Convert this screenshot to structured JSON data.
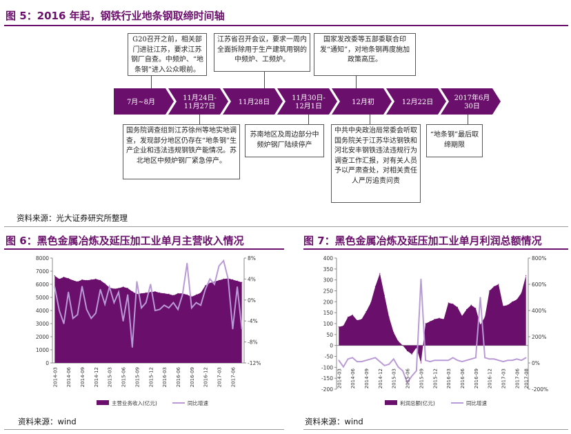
{
  "fig5": {
    "title": "图 5：2016 年起，钢铁行业地条钢取缔时间轴",
    "timeline": [
      "7月~8月",
      "11月24日-\n11月27日",
      "11月28日",
      "11月30日-\n12月1日",
      "12月初",
      "12月22日",
      "2017年6月\n30日"
    ],
    "events_top": [
      "G20召开之前，相关部门进驻江苏，要求江苏钢厂自查。中频炉、“地条钢”进入公众眼前。",
      "江苏省召开会议，要求一周内全面拆除用于生产建筑用钢的中频炉、工频炉。",
      "国家发改委等五部委联合印发“通知”，对地条钢再度施加政策高压。"
    ],
    "events_bottom": [
      "国务院调查组到江苏徐州等地实地调查，发现部分地区仍存在“地条钢”生产企业和违法违规钢铁产能情况。苏北地区中频炉钢厂紧急停产。",
      "苏南地区及周边部分中频炉钢厂陆续停产",
      "中共中央政治局常委会听取国务院关于江苏华达钢铁和河北安丰钢铁违法违规行为调查工作汇报，对有关人员予以严肃查处，对相关责任人严厉追责问责",
      "“地条钢”最后取缔期限"
    ],
    "source": "资料来源：光大证券研究所整理"
  },
  "fig6": {
    "title": "图 6：黑色金属冶炼及延压加工业单月主营收入情况",
    "source": "资料来源：wind"
  },
  "fig7": {
    "title": "图 7：黑色金属冶炼及延压加工业单月利润总额情况",
    "source": "资料来源：wind"
  },
  "chart_data": [
    {
      "type": "area",
      "x": [
        "2014-03",
        "2014-04",
        "2014-05",
        "2014-06",
        "2014-07",
        "2014-08",
        "2014-09",
        "2014-10",
        "2014-11",
        "2014-12",
        "2015-01",
        "2015-02",
        "2015-03",
        "2015-04",
        "2015-05",
        "2015-06",
        "2015-07",
        "2015-08",
        "2015-09",
        "2015-10",
        "2015-11",
        "2015-12",
        "2016-01",
        "2016-02",
        "2016-03",
        "2016-04",
        "2016-05",
        "2016-06",
        "2016-07",
        "2016-08",
        "2016-09",
        "2016-10",
        "2016-11",
        "2016-12",
        "2017-01",
        "2017-02",
        "2017-03",
        "2017-04",
        "2017-05",
        "2017-06",
        "2017-07",
        "2017-08"
      ],
      "x_ticks": [
        "2014-03",
        "2014-06",
        "2014-09",
        "2014-12",
        "2015-03",
        "2015-06",
        "2015-09",
        "2015-12",
        "2016-03",
        "2016-06",
        "2016-09",
        "2016-12",
        "2017-03",
        "2017-06"
      ],
      "series": [
        {
          "name": "主营业务收入(亿元)",
          "axis": "left",
          "kind": "area",
          "color": "#6a0f6b",
          "values": [
            6650,
            6400,
            6550,
            6450,
            6300,
            6200,
            6350,
            6300,
            6350,
            6400,
            6300,
            6050,
            5750,
            5650,
            5700,
            5800,
            5700,
            5450,
            5250,
            5300,
            5350,
            5400,
            5450,
            5350,
            5300,
            5250,
            5150,
            5300,
            5300,
            5200,
            5050,
            5200,
            5350,
            5900,
            6100,
            6200,
            6300,
            6400,
            6450,
            6350,
            6250,
            6150
          ]
        },
        {
          "name": "同比增速",
          "axis": "right",
          "kind": "line",
          "color": "#b99ad6",
          "values": [
            2.5,
            -2.0,
            -4.5,
            1.5,
            -3.5,
            -2.8,
            2.6,
            -1.8,
            -3.5,
            -2.5,
            2.0,
            -0.8,
            2.5,
            -0.5,
            1.5,
            -4.0,
            1.0,
            -9.0,
            3.5,
            -1.5,
            -0.5,
            3.0,
            -2.0,
            -1.8,
            -1.0,
            -1.5,
            -0.5,
            -1.8,
            1.0,
            7.0,
            -1.5,
            -0.5,
            -1.0,
            2.0,
            4.0,
            3.0,
            6.5,
            7.5,
            4.0,
            -5.5,
            2.5,
            -5.5
          ]
        }
      ],
      "ylim_left": [
        0,
        8000
      ],
      "yticks_left": [
        0,
        1000,
        2000,
        3000,
        4000,
        5000,
        6000,
        7000,
        8000
      ],
      "ylim_right": [
        -12,
        8
      ],
      "yticks_right": [
        "-12%",
        "-8%",
        "-4%",
        "0%",
        "4%",
        "8%"
      ],
      "legend": "bottom"
    },
    {
      "type": "area",
      "x": [
        "2014-03",
        "2014-04",
        "2014-05",
        "2014-06",
        "2014-07",
        "2014-08",
        "2014-09",
        "2014-10",
        "2014-11",
        "2014-12",
        "2015-01",
        "2015-02",
        "2015-03",
        "2015-04",
        "2015-05",
        "2015-06",
        "2015-07",
        "2015-08",
        "2015-09",
        "2015-10",
        "2015-11",
        "2015-12",
        "2016-01",
        "2016-02",
        "2016-03",
        "2016-04",
        "2016-05",
        "2016-06",
        "2016-07",
        "2016-08",
        "2016-09",
        "2016-10",
        "2016-11",
        "2016-12",
        "2017-01",
        "2017-02",
        "2017-03",
        "2017-04",
        "2017-05",
        "2017-06",
        "2017-07",
        "2017-08"
      ],
      "x_ticks": [
        "2014-03",
        "2014-06",
        "2014-09",
        "2014-12",
        "2015-03",
        "2015-06",
        "2015-09",
        "2015-12",
        "2016-03",
        "2016-06",
        "2016-09",
        "2016-12",
        "2017-03",
        "2017-06",
        "2017-08"
      ],
      "series": [
        {
          "name": "利润总额(亿元)",
          "axis": "left",
          "kind": "area",
          "color": "#6a0f6b",
          "values": [
            85,
            90,
            130,
            140,
            115,
            120,
            155,
            195,
            270,
            330,
            230,
            130,
            60,
            20,
            0,
            -25,
            -40,
            -10,
            -80,
            100,
            110,
            120,
            125,
            120,
            195,
            190,
            175,
            135,
            165,
            185,
            170,
            95,
            130,
            250,
            270,
            280,
            180,
            185,
            200,
            210,
            240,
            320
          ]
        },
        {
          "name": "同比增速",
          "axis": "right",
          "kind": "line",
          "color": "#b99ad6",
          "values": [
            20,
            -30,
            30,
            40,
            10,
            10,
            20,
            30,
            40,
            10,
            -20,
            -10,
            30,
            -30,
            -60,
            -150,
            -100,
            -60,
            640,
            20,
            10,
            20,
            20,
            20,
            20,
            40,
            20,
            10,
            20,
            30,
            40,
            500,
            40,
            30,
            30,
            20,
            10,
            20,
            20,
            30,
            20,
            40
          ]
        }
      ],
      "ylim_left": [
        -200,
        400
      ],
      "yticks_left": [
        -200,
        -150,
        -100,
        -50,
        0,
        50,
        100,
        150,
        200,
        250,
        300,
        350,
        400
      ],
      "ylim_right": [
        -200,
        800
      ],
      "yticks_right": [
        "-200%",
        "0%",
        "200%",
        "400%",
        "600%",
        "800%"
      ],
      "legend": "bottom"
    }
  ]
}
